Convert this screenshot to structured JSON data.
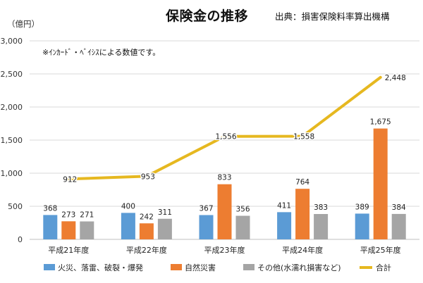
{
  "title": "保険金の推移",
  "source": "出典：損害保険料率算出機構",
  "unit_label": "（億円）",
  "note": "※ｲﾝｶｰﾄﾞ・ﾍﾞｲｼｽによる数値です。",
  "colors": {
    "fire": "#5B9BD5",
    "natural": "#ED7D31",
    "other": "#A5A5A5",
    "total": "#E6B820"
  },
  "chart_data": {
    "type": "bar",
    "categories": [
      "平成21年度",
      "平成22年度",
      "平成23年度",
      "平成24年度",
      "平成25年度"
    ],
    "series": [
      {
        "name": "火災、落雷、破裂・爆発",
        "type": "bar",
        "values": [
          368,
          400,
          367,
          411,
          389
        ]
      },
      {
        "name": "自然災害",
        "type": "bar",
        "values": [
          273,
          242,
          833,
          764,
          1675
        ]
      },
      {
        "name": "その他(水濡れ損害など)",
        "type": "bar",
        "values": [
          271,
          311,
          356,
          383,
          384
        ]
      },
      {
        "name": "合計",
        "type": "line",
        "values": [
          912,
          953,
          1556,
          1558,
          2448
        ]
      }
    ],
    "data_labels": {
      "bars": [
        [
          "368",
          "400",
          "367",
          "411",
          "389"
        ],
        [
          "273",
          "242",
          "833",
          "764",
          "1,675"
        ],
        [
          "271",
          "311",
          "356",
          "383",
          "384"
        ]
      ],
      "line": [
        "912",
        "953",
        "1,556",
        "1,558",
        "2,448"
      ]
    },
    "y_ticks": [
      "0",
      "500",
      "1,000",
      "1,500",
      "2,000",
      "2,500",
      "3,000"
    ],
    "ylim": [
      0,
      3000
    ],
    "grid": true,
    "legend_position": "bottom"
  }
}
